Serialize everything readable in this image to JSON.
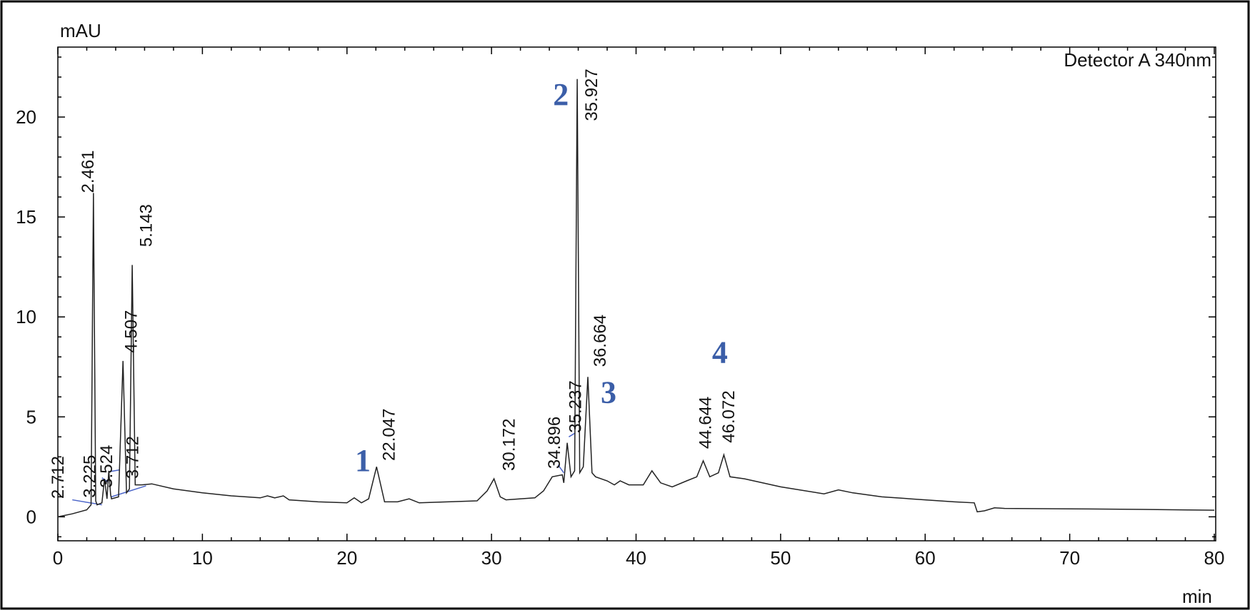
{
  "colors": {
    "trace": "#222222",
    "baseline_marks": "#4a64c8",
    "compound_labels": "#3b5ea8",
    "axis": "#000000"
  },
  "chart_data": {
    "type": "line",
    "title": "",
    "ylabel": "mAU",
    "xlabel": "min",
    "detector": "Detector A 340nm",
    "xlim": [
      0,
      80.1
    ],
    "ylim": [
      -1.2,
      23.5
    ],
    "x_ticks": [
      0,
      10,
      20,
      30,
      40,
      50,
      60,
      70,
      80
    ],
    "y_ticks": [
      0,
      5,
      10,
      15,
      20
    ],
    "grid": false,
    "series": [
      {
        "name": "",
        "x": [
          0,
          1.0,
          2.0,
          2.3,
          2.461,
          2.62,
          2.712,
          3.05,
          3.225,
          3.4,
          3.524,
          3.65,
          3.712,
          4.2,
          4.507,
          4.75,
          4.95,
          5.143,
          5.35,
          5.8,
          6.5,
          8,
          10,
          12,
          14,
          14.5,
          15,
          15.6,
          16,
          18,
          20,
          20.5,
          21,
          21.5,
          22.047,
          22.6,
          23.5,
          24.3,
          25,
          27,
          29,
          29.7,
          30.172,
          30.6,
          31,
          33,
          33.6,
          34.2,
          34.896,
          35.0,
          35.237,
          35.5,
          35.75,
          35.927,
          36.1,
          36.35,
          36.664,
          36.95,
          37.2,
          38,
          38.5,
          38.9,
          39.5,
          40.5,
          41.1,
          41.7,
          42.5,
          43.5,
          44.2,
          44.644,
          45.1,
          45.7,
          46.072,
          46.5,
          47.5,
          50,
          53,
          54,
          55,
          57,
          58,
          59,
          60,
          62,
          63.4,
          63.6,
          64.1,
          64.8,
          65.5,
          70,
          75,
          80
        ],
        "y": [
          0.0,
          0.15,
          0.35,
          0.6,
          16.2,
          0.8,
          0.6,
          0.7,
          1.9,
          0.9,
          2.3,
          1.1,
          0.9,
          1.0,
          7.8,
          1.2,
          1.4,
          12.6,
          1.6,
          1.6,
          1.65,
          1.4,
          1.2,
          1.05,
          0.95,
          1.05,
          0.95,
          1.05,
          0.85,
          0.75,
          0.7,
          0.95,
          0.7,
          0.9,
          2.5,
          0.75,
          0.75,
          0.9,
          0.7,
          0.75,
          0.8,
          1.3,
          1.9,
          1.0,
          0.85,
          0.95,
          1.3,
          2.0,
          2.1,
          1.7,
          3.7,
          2.0,
          2.3,
          21.9,
          2.2,
          2.5,
          7.0,
          2.2,
          2.0,
          1.8,
          1.6,
          1.8,
          1.6,
          1.6,
          2.3,
          1.7,
          1.5,
          1.8,
          2.0,
          2.8,
          2.0,
          2.2,
          3.1,
          2.0,
          1.9,
          1.5,
          1.15,
          1.35,
          1.2,
          1.0,
          0.95,
          0.9,
          0.85,
          0.75,
          0.7,
          0.25,
          0.3,
          0.45,
          0.42,
          0.4,
          0.37,
          0.33
        ]
      }
    ],
    "peak_labels": [
      {
        "text": "2.461",
        "x": 2.461,
        "y": 16.2
      },
      {
        "text": "2.712",
        "x": 0.4,
        "y": 0.9
      },
      {
        "text": "3.225",
        "x": 2.6,
        "y": 0.95
      },
      {
        "text": "3.524",
        "x": 3.75,
        "y": 1.45
      },
      {
        "text": "3.712",
        "x": 5.55,
        "y": 1.9
      },
      {
        "text": "4.507",
        "x": 5.45,
        "y": 8.2
      },
      {
        "text": "5.143",
        "x": 6.5,
        "y": 13.5
      },
      {
        "text": "22.047",
        "x": 23.3,
        "y": 2.8
      },
      {
        "text": "30.172",
        "x": 31.6,
        "y": 2.3
      },
      {
        "text": "34.896",
        "x": 34.75,
        "y": 2.4
      },
      {
        "text": "35.237",
        "x": 36.2,
        "y": 4.2
      },
      {
        "text": "35.927",
        "x": 37.3,
        "y": 19.8
      },
      {
        "text": "36.664",
        "x": 37.9,
        "y": 7.5
      },
      {
        "text": "44.644",
        "x": 45.2,
        "y": 3.4
      },
      {
        "text": "46.072",
        "x": 46.8,
        "y": 3.7
      }
    ],
    "compound_labels": [
      {
        "text": "1",
        "x": 21.1,
        "y": 2.3
      },
      {
        "text": "2",
        "x": 34.8,
        "y": 20.6
      },
      {
        "text": "3",
        "x": 38.1,
        "y": 5.7
      },
      {
        "text": "4",
        "x": 45.8,
        "y": 7.7
      }
    ],
    "baseline_segments": [
      {
        "x1": 1.0,
        "y1": 0.85,
        "x2": 3.05,
        "y2": 0.6
      },
      {
        "x1": 3.05,
        "y1": 1.95,
        "x2": 3.45,
        "y2": 1.75
      },
      {
        "x1": 3.5,
        "y1": 2.25,
        "x2": 4.3,
        "y2": 2.35
      },
      {
        "x1": 3.7,
        "y1": 1.0,
        "x2": 6.1,
        "y2": 1.55
      },
      {
        "x1": 34.6,
        "y1": 2.6,
        "x2": 35.0,
        "y2": 2.2
      },
      {
        "x1": 35.35,
        "y1": 4.0,
        "x2": 35.8,
        "y2": 4.2
      }
    ]
  }
}
